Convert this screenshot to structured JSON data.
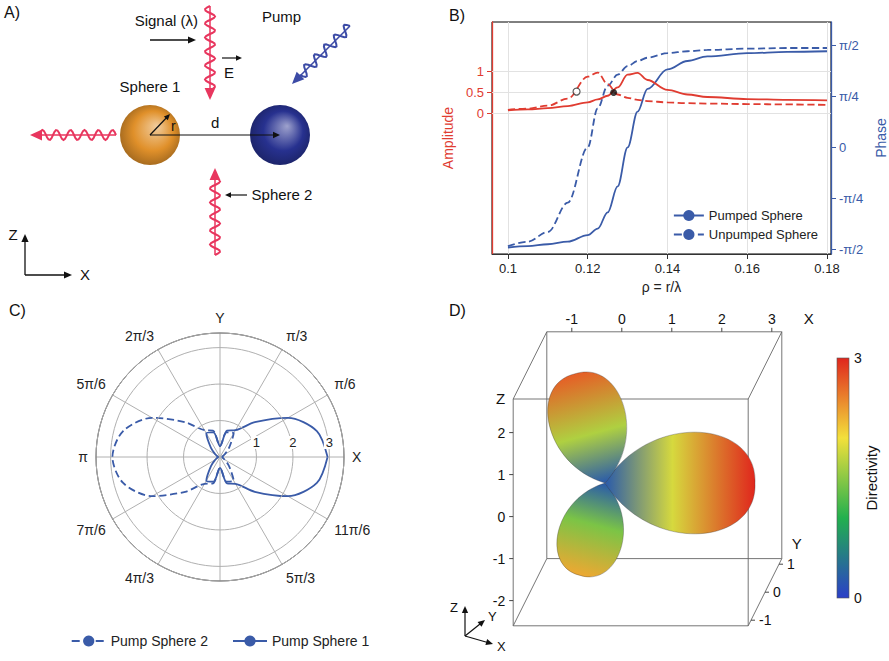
{
  "diagram": {
    "panel": "A)",
    "signal": "Signal (λ)",
    "pump": "Pump",
    "field": "E",
    "radius": "r",
    "distance": "d",
    "axes": [
      "Z",
      "X"
    ],
    "spheres": [
      {
        "label": "Sphere 1",
        "color": "#e0902a"
      },
      {
        "label": "Sphere 2",
        "color": "#27318f"
      }
    ],
    "signal_color": "#e8365e",
    "pump_color": "#3c4ba6"
  },
  "chart_data": [
    {
      "panel": "B)",
      "type": "line",
      "xlabel": "ρ = r/λ",
      "ylabel": "Amplitude",
      "y2label": "Phase",
      "x": [
        0.1,
        0.105,
        0.11,
        0.115,
        0.12,
        0.1225,
        0.125,
        0.1275,
        0.13,
        0.1325,
        0.135,
        0.14,
        0.145,
        0.15,
        0.16,
        0.17,
        0.18
      ],
      "xlim": [
        0.096,
        0.181
      ],
      "xticks": [
        0.1,
        0.12,
        0.14,
        0.16,
        0.18
      ],
      "ylim": [
        -3.4,
        2.2
      ],
      "yticks": [
        0,
        0.5,
        1
      ],
      "y2lim": [
        -1.64,
        1.93
      ],
      "y2ticks": [
        {
          "value": -1.5708,
          "label": "-π/2"
        },
        {
          "value": -0.7854,
          "label": "-π/4"
        },
        0,
        {
          "value": 0.7854,
          "label": "π/4"
        },
        {
          "value": 1.5708,
          "label": "π/2"
        }
      ],
      "grid": true,
      "legend": "lower right",
      "series": [
        {
          "name": "Pumped Sphere",
          "axis": "y2",
          "color": "#3a5ba8",
          "line_style": "solid",
          "values": [
            -1.54,
            -1.52,
            -1.49,
            -1.45,
            -1.35,
            -1.25,
            -1.0,
            -0.6,
            0.0,
            0.55,
            0.9,
            1.2,
            1.33,
            1.4,
            1.45,
            1.47,
            1.48
          ]
        },
        {
          "name": "Unpumped Sphere",
          "axis": "y2",
          "color": "#3a5ba8",
          "line_style": "dashed",
          "values": [
            -1.52,
            -1.45,
            -1.3,
            -0.85,
            0.0,
            0.6,
            0.95,
            1.12,
            1.25,
            1.33,
            1.38,
            1.45,
            1.48,
            1.5,
            1.52,
            1.53,
            1.53
          ]
        },
        {
          "name": "Pumped Sphere",
          "axis": "y",
          "color": "#e03c31",
          "line_style": "solid",
          "values": [
            0.07,
            0.09,
            0.12,
            0.17,
            0.26,
            0.33,
            0.42,
            0.62,
            0.93,
            0.97,
            0.8,
            0.56,
            0.45,
            0.39,
            0.34,
            0.32,
            0.31
          ]
        },
        {
          "name": "Unpumped Sphere",
          "axis": "y",
          "color": "#e03c31",
          "line_style": "dashed",
          "values": [
            0.08,
            0.11,
            0.18,
            0.35,
            0.88,
            0.98,
            0.7,
            0.45,
            0.37,
            0.32,
            0.29,
            0.26,
            0.24,
            0.23,
            0.22,
            0.21,
            0.2
          ]
        }
      ],
      "markers": [
        {
          "x": 0.1172,
          "y": 0.52,
          "marker": "open_circle",
          "color": "#333333"
        },
        {
          "x": 0.1265,
          "y": 0.5,
          "marker": "filled_circle",
          "color": "#111111"
        }
      ]
    },
    {
      "panel": "C)",
      "type": "polar",
      "x": [
        0,
        0.2618,
        0.5236,
        0.7854,
        1.0472,
        1.309,
        1.5708,
        1.8326,
        2.0944,
        2.3562,
        2.618,
        2.8798,
        3.1416,
        3.4034,
        3.6652,
        3.927,
        4.1888,
        4.4506,
        4.7124,
        4.9742,
        5.236,
        5.4978,
        5.7596,
        6.0214,
        6.2832
      ],
      "xlim": [
        0,
        6.2832
      ],
      "xticks": [
        {
          "value": 0,
          "label": "X"
        },
        {
          "value": 0.5236,
          "label": "π/6"
        },
        {
          "value": 1.0472,
          "label": "π/3"
        },
        {
          "value": 1.5708,
          "label": "Y"
        },
        {
          "value": 2.0944,
          "label": "2π/3"
        },
        {
          "value": 2.618,
          "label": "5π/6"
        },
        {
          "value": 3.1416,
          "label": "π"
        },
        {
          "value": 3.6652,
          "label": "7π/6"
        },
        {
          "value": 4.1888,
          "label": "4π/3"
        },
        {
          "value": 4.7124,
          "label": null
        },
        {
          "value": 5.236,
          "label": "5π/3"
        },
        {
          "value": 5.7596,
          "label": "11π/6"
        }
      ],
      "ylim": [
        0,
        3.4
      ],
      "yticks": [
        1,
        2,
        3
      ],
      "grid": true,
      "legend": "bottom",
      "series": [
        {
          "name": "Pump Sphere 2",
          "color": "#3a5ba8",
          "line_style": "dashed",
          "values": [
            0.05,
            0.08,
            0.15,
            0.35,
            0.75,
            0.7,
            0.3,
            0.75,
            0.85,
            1.35,
            2.15,
            2.75,
            2.95,
            2.75,
            2.15,
            1.35,
            0.85,
            0.75,
            0.3,
            0.7,
            0.75,
            0.35,
            0.15,
            0.08,
            0.05
          ]
        },
        {
          "name": "Pump Sphere 1",
          "color": "#3a5ba8",
          "line_style": "solid",
          "values": [
            2.95,
            2.75,
            2.15,
            1.35,
            0.85,
            0.75,
            0.3,
            0.7,
            0.75,
            0.35,
            0.15,
            0.08,
            0.05,
            0.08,
            0.15,
            0.35,
            0.75,
            0.7,
            0.3,
            0.75,
            0.85,
            1.35,
            2.15,
            2.75,
            2.95
          ]
        }
      ]
    },
    {
      "panel": "D)",
      "type": "surface3d",
      "xlabel": "X",
      "ylabel": "Y",
      "zlabel": "Z",
      "xlim": [
        -1.5,
        3.2
      ],
      "ylim": [
        -1.2,
        1.2
      ],
      "zlim": [
        -2.6,
        2.8
      ],
      "xticks": [
        -1,
        0,
        1,
        2,
        3
      ],
      "yticks": [
        -1,
        0,
        1
      ],
      "zticks": [
        -2,
        -1,
        0,
        1,
        2
      ],
      "colorbar": {
        "label": "Directivity",
        "range": [
          0,
          3
        ],
        "ticks": [
          0,
          3
        ],
        "colors": [
          "#2b3fc8",
          "#22b04e",
          "#f3e03b",
          "#e0261d"
        ]
      },
      "lobes": [
        {
          "tip": [
            -0.5,
            0,
            -2.2
          ],
          "directivity": 2.3
        },
        {
          "tip": [
            3,
            0,
            0
          ],
          "directivity": 3
        },
        {
          "tip": [
            -0.6,
            0,
            2.6
          ],
          "directivity": 2.7
        }
      ]
    }
  ]
}
